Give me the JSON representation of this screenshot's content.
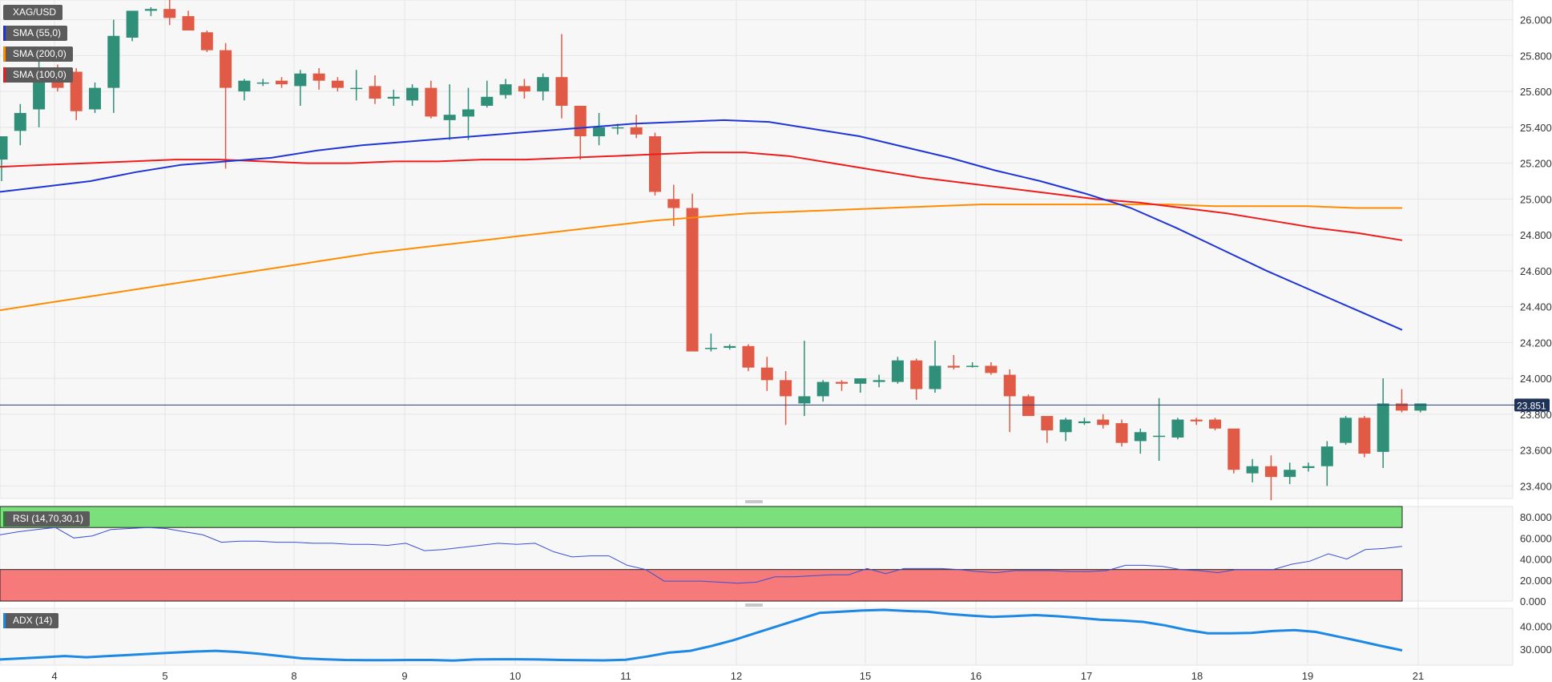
{
  "symbol": "XAG/USD",
  "price_label": "23.851",
  "colors": {
    "up": "#2f8f78",
    "down": "#e05a45",
    "sma55": "#1f35d6",
    "sma200": "#ff8c00",
    "sma100": "#ee1c1c",
    "rsi": "#3a4fd6",
    "adx": "#1e88e5",
    "overbought": "#7be07b",
    "oversold": "#f77a7a"
  },
  "legends": {
    "sma55": "SMA (55,0)",
    "sma200": "SMA (200,0)",
    "sma100": "SMA (100,0)",
    "rsi": "RSI (14,70,30,1)",
    "adx": "ADX (14)"
  },
  "chart_data": {
    "type": "candlestick",
    "x_tick_labels": [
      "4",
      "5",
      "8",
      "9",
      "10",
      "11",
      "12",
      "15",
      "16",
      "17",
      "18",
      "19",
      "21"
    ],
    "y_tick_labels": [
      "26.000",
      "25.800",
      "25.600",
      "25.400",
      "25.200",
      "25.000",
      "24.800",
      "24.600",
      "24.400",
      "24.200",
      "24.000",
      "23.800",
      "23.600",
      "23.400"
    ],
    "ylim": [
      23.33,
      26.11
    ],
    "last_price": 23.851,
    "candles": [
      [
        25.22,
        25.35,
        25.1,
        25.35
      ],
      [
        25.38,
        25.53,
        25.3,
        25.48
      ],
      [
        25.5,
        25.8,
        25.4,
        25.7
      ],
      [
        25.72,
        25.75,
        25.6,
        25.62
      ],
      [
        25.71,
        25.73,
        25.44,
        25.49
      ],
      [
        25.5,
        25.65,
        25.48,
        25.62
      ],
      [
        25.62,
        26.0,
        25.48,
        25.91
      ],
      [
        25.9,
        26.05,
        25.88,
        26.05
      ],
      [
        26.05,
        26.07,
        26.02,
        26.06
      ],
      [
        26.06,
        26.14,
        25.97,
        26.01
      ],
      [
        26.02,
        26.05,
        25.94,
        25.94
      ],
      [
        25.93,
        25.94,
        25.82,
        25.83
      ],
      [
        25.83,
        25.87,
        25.17,
        25.62
      ],
      [
        25.6,
        25.67,
        25.55,
        25.66
      ],
      [
        25.65,
        25.67,
        25.63,
        25.65
      ],
      [
        25.66,
        25.68,
        25.62,
        25.64
      ],
      [
        25.63,
        25.72,
        25.52,
        25.7
      ],
      [
        25.7,
        25.73,
        25.61,
        25.66
      ],
      [
        25.66,
        25.68,
        25.6,
        25.62
      ],
      [
        25.62,
        25.72,
        25.55,
        25.62
      ],
      [
        25.63,
        25.69,
        25.53,
        25.56
      ],
      [
        25.56,
        25.61,
        25.52,
        25.57
      ],
      [
        25.55,
        25.64,
        25.52,
        25.62
      ],
      [
        25.62,
        25.66,
        25.45,
        25.46
      ],
      [
        25.44,
        25.64,
        25.33,
        25.47
      ],
      [
        25.46,
        25.62,
        25.33,
        25.5
      ],
      [
        25.52,
        25.66,
        25.51,
        25.57
      ],
      [
        25.58,
        25.67,
        25.56,
        25.64
      ],
      [
        25.63,
        25.67,
        25.56,
        25.6
      ],
      [
        25.6,
        25.7,
        25.55,
        25.68
      ],
      [
        25.68,
        25.92,
        25.45,
        25.52
      ],
      [
        25.52,
        25.52,
        25.22,
        25.35
      ],
      [
        25.35,
        25.48,
        25.3,
        25.4
      ],
      [
        25.4,
        25.42,
        25.36,
        25.4
      ],
      [
        25.4,
        25.47,
        25.34,
        25.36
      ],
      [
        25.35,
        25.37,
        25.02,
        25.04
      ],
      [
        25.0,
        25.08,
        24.85,
        24.95
      ],
      [
        24.95,
        25.03,
        24.15,
        24.15
      ],
      [
        24.17,
        24.25,
        24.15,
        24.17
      ],
      [
        24.17,
        24.19,
        24.16,
        24.18
      ],
      [
        24.18,
        24.19,
        24.04,
        24.06
      ],
      [
        24.06,
        24.12,
        23.93,
        23.99
      ],
      [
        23.99,
        24.04,
        23.74,
        23.9
      ],
      [
        23.86,
        24.21,
        23.79,
        23.9
      ],
      [
        23.9,
        23.99,
        23.87,
        23.98
      ],
      [
        23.98,
        23.99,
        23.93,
        23.97
      ],
      [
        23.97,
        24.0,
        23.92,
        24.0
      ],
      [
        23.98,
        24.02,
        23.95,
        23.99
      ],
      [
        23.98,
        24.12,
        23.97,
        24.1
      ],
      [
        24.1,
        24.11,
        23.88,
        23.94
      ],
      [
        23.94,
        24.21,
        23.92,
        24.07
      ],
      [
        24.07,
        24.13,
        24.05,
        24.06
      ],
      [
        24.07,
        24.09,
        24.06,
        24.07
      ],
      [
        24.07,
        24.09,
        24.02,
        24.03
      ],
      [
        24.02,
        24.05,
        23.7,
        23.9
      ],
      [
        23.9,
        23.91,
        23.79,
        23.79
      ],
      [
        23.79,
        23.78,
        23.64,
        23.71
      ],
      [
        23.7,
        23.78,
        23.65,
        23.77
      ],
      [
        23.75,
        23.78,
        23.74,
        23.76
      ],
      [
        23.77,
        23.8,
        23.72,
        23.74
      ],
      [
        23.75,
        23.77,
        23.62,
        23.64
      ],
      [
        23.65,
        23.72,
        23.58,
        23.7
      ],
      [
        23.68,
        23.89,
        23.54,
        23.68
      ],
      [
        23.67,
        23.78,
        23.66,
        23.77
      ],
      [
        23.77,
        23.78,
        23.74,
        23.76
      ],
      [
        23.77,
        23.78,
        23.71,
        23.72
      ],
      [
        23.72,
        23.7,
        23.47,
        23.49
      ],
      [
        23.47,
        23.55,
        23.42,
        23.51
      ],
      [
        23.51,
        23.57,
        23.32,
        23.45
      ],
      [
        23.45,
        23.53,
        23.41,
        23.49
      ],
      [
        23.5,
        23.53,
        23.48,
        23.51
      ],
      [
        23.51,
        23.65,
        23.4,
        23.62
      ],
      [
        23.64,
        23.79,
        23.63,
        23.78
      ],
      [
        23.78,
        23.79,
        23.56,
        23.58
      ],
      [
        23.59,
        24.0,
        23.5,
        23.86
      ],
      [
        23.86,
        23.94,
        23.81,
        23.82
      ],
      [
        23.82,
        23.86,
        23.81,
        23.86
      ]
    ],
    "sma55": [
      25.04,
      25.07,
      25.1,
      25.15,
      25.19,
      25.21,
      25.23,
      25.27,
      25.3,
      25.32,
      25.34,
      25.36,
      25.38,
      25.4,
      25.42,
      25.43,
      25.44,
      25.43,
      25.39,
      25.35,
      25.29,
      25.23,
      25.16,
      25.1,
      25.03,
      24.95,
      24.84,
      24.72,
      24.6,
      24.49,
      24.38,
      24.27
    ],
    "sma100": [
      25.18,
      25.19,
      25.2,
      25.21,
      25.22,
      25.22,
      25.21,
      25.2,
      25.2,
      25.21,
      25.21,
      25.22,
      25.22,
      25.23,
      25.24,
      25.25,
      25.26,
      25.26,
      25.24,
      25.2,
      25.16,
      25.12,
      25.09,
      25.06,
      25.03,
      25.0,
      24.98,
      24.95,
      24.92,
      24.88,
      24.84,
      24.81,
      24.77
    ],
    "sma200": [
      24.38,
      24.42,
      24.46,
      24.5,
      24.54,
      24.58,
      24.62,
      24.66,
      24.7,
      24.73,
      24.76,
      24.79,
      24.82,
      24.85,
      24.88,
      24.9,
      24.92,
      24.93,
      24.94,
      24.95,
      24.96,
      24.97,
      24.97,
      24.97,
      24.97,
      24.97,
      24.96,
      24.96,
      24.96,
      24.95,
      24.95
    ],
    "rsi": {
      "ylim": [
        0,
        90
      ],
      "y_tick_labels": [
        "80.000",
        "60.000",
        "40.000",
        "20.000",
        "0.000"
      ],
      "overbought": 70,
      "oversold": 30,
      "values": [
        63,
        66,
        68,
        70,
        60,
        62,
        68,
        69,
        70,
        69,
        66,
        63,
        56,
        57,
        57,
        56,
        56,
        55,
        55,
        54,
        54,
        53,
        55,
        48,
        49,
        51,
        53,
        55,
        54,
        55,
        47,
        42,
        43,
        43,
        34,
        30,
        19,
        19,
        19,
        18,
        17,
        18,
        23,
        23,
        24,
        25,
        25,
        31,
        26,
        31,
        31,
        31,
        30,
        28,
        27,
        29,
        29,
        29,
        28,
        28,
        29,
        34,
        34,
        33,
        30,
        29,
        27,
        30,
        30,
        30,
        35,
        38,
        45,
        40,
        49,
        50,
        52
      ]
    },
    "adx": {
      "ylim": [
        23,
        48
      ],
      "y_tick_labels": [
        "40.000",
        "30.000"
      ],
      "values": [
        25.5,
        26,
        26.5,
        27,
        26.5,
        27,
        27.5,
        28,
        28.5,
        29,
        29.3,
        28.8,
        28,
        27,
        26,
        25.6,
        25.3,
        25.2,
        25.2,
        25.3,
        25.3,
        25,
        25.5,
        25.6,
        25.6,
        25.5,
        25.3,
        25.2,
        25.1,
        25.4,
        26.8,
        28.5,
        29.3,
        31.5,
        34,
        37,
        40,
        43,
        46,
        46.5,
        47,
        47.3,
        46.8,
        46.5,
        45.5,
        44.8,
        44.2,
        44.6,
        45,
        44.5,
        43.8,
        43,
        42.6,
        42,
        40.5,
        38.5,
        37,
        37,
        37.2,
        38,
        38.4,
        37.6,
        35.6,
        33.6,
        31.5,
        29.5
      ]
    }
  }
}
